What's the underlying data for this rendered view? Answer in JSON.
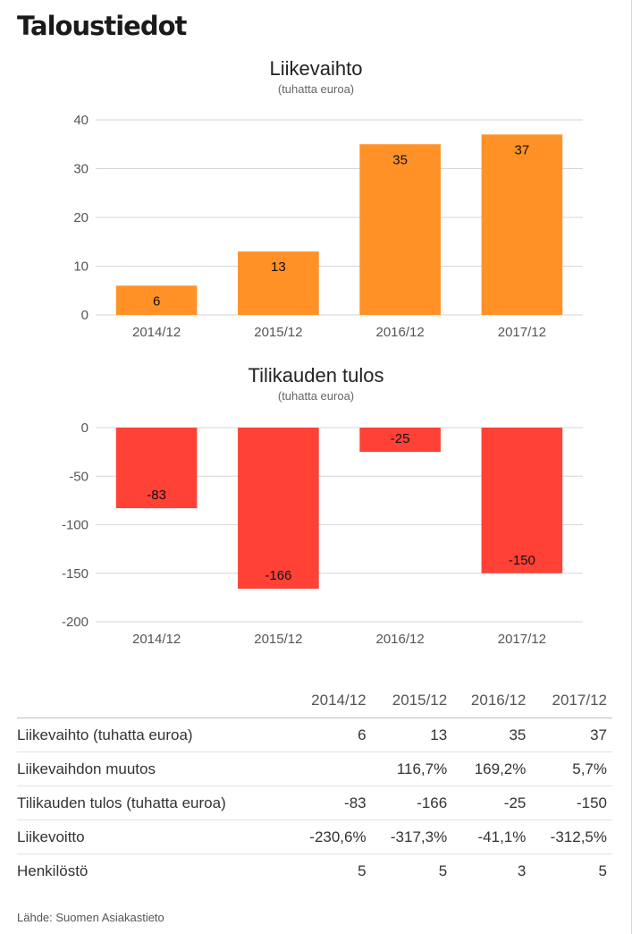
{
  "page_title": "Taloustiedot",
  "colors": {
    "revenue": "#ff9126",
    "result": "#ff4136"
  },
  "chart_data": [
    {
      "type": "bar",
      "title": "Liikevaihto",
      "subtitle": "(tuhatta euroa)",
      "categories": [
        "2014/12",
        "2015/12",
        "2016/12",
        "2017/12"
      ],
      "values": [
        6,
        13,
        35,
        37
      ],
      "ylim": [
        0,
        40
      ],
      "yticks": [
        0,
        10,
        20,
        30,
        40
      ],
      "grid": true,
      "legend": "none"
    },
    {
      "type": "bar",
      "title": "Tilikauden tulos",
      "subtitle": "(tuhatta euroa)",
      "categories": [
        "2014/12",
        "2015/12",
        "2016/12",
        "2017/12"
      ],
      "values": [
        -83,
        -166,
        -25,
        -150
      ],
      "ylim": [
        -200,
        0
      ],
      "yticks": [
        0,
        -50,
        -100,
        -150,
        -200
      ],
      "grid": true,
      "legend": "none"
    }
  ],
  "table": {
    "columns": [
      "2014/12",
      "2015/12",
      "2016/12",
      "2017/12"
    ],
    "rows": [
      {
        "label": "Liikevaihto (tuhatta euroa)",
        "values": [
          "6",
          "13",
          "35",
          "37"
        ]
      },
      {
        "label": "Liikevaihdon muutos",
        "values": [
          "",
          "116,7%",
          "169,2%",
          "5,7%"
        ]
      },
      {
        "label": "Tilikauden tulos (tuhatta euroa)",
        "values": [
          "-83",
          "-166",
          "-25",
          "-150"
        ]
      },
      {
        "label": "Liikevoitto",
        "values": [
          "-230,6%",
          "-317,3%",
          "-41,1%",
          "-312,5%"
        ]
      },
      {
        "label": "Henkilöstö",
        "values": [
          "5",
          "5",
          "3",
          "5"
        ]
      }
    ]
  },
  "source": "Lähde: Suomen Asiakastieto"
}
